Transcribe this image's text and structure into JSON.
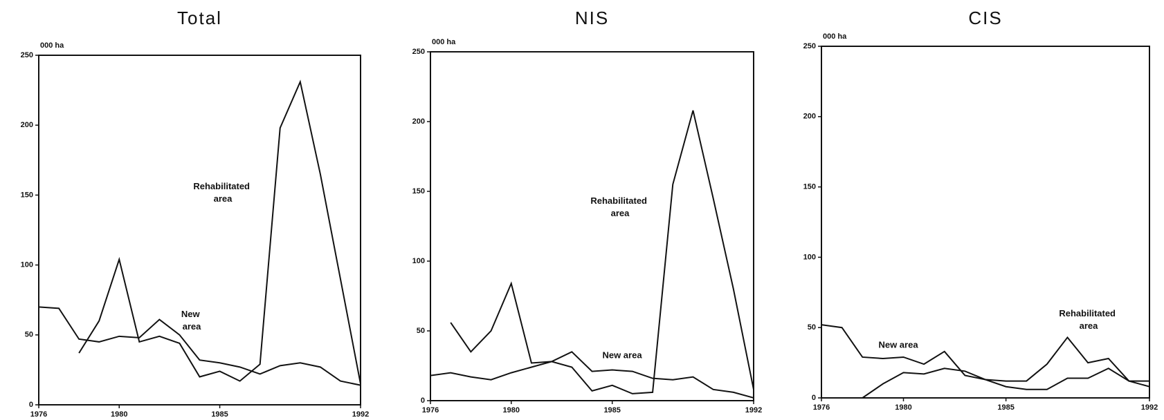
{
  "chart_data": [
    {
      "type": "line",
      "title": "Total",
      "ylabel": "000 ha",
      "x": [
        1976,
        1977,
        1978,
        1979,
        1980,
        1981,
        1982,
        1983,
        1984,
        1985,
        1986,
        1987,
        1988,
        1989,
        1990,
        1991,
        1992
      ],
      "xlim": [
        1976,
        1992
      ],
      "xticks": [
        1976,
        1980,
        1985,
        1992
      ],
      "ylim": [
        0,
        250
      ],
      "yticks": [
        0,
        50,
        100,
        150,
        200,
        250
      ],
      "series": [
        {
          "name": "New area",
          "color": "#111111",
          "values": [
            70,
            69,
            47,
            45,
            49,
            48,
            61,
            50,
            32,
            30,
            27,
            22,
            28,
            30,
            27,
            17,
            14
          ]
        },
        {
          "name": "Rehabilitated area",
          "color": "#111111",
          "values": [
            null,
            null,
            37,
            60,
            104,
            45,
            49,
            44,
            20,
            24,
            17,
            29,
            198,
            231,
            165,
            90,
            15
          ]
        }
      ]
    },
    {
      "type": "line",
      "title": "NIS",
      "ylabel": "000 ha",
      "x": [
        1976,
        1977,
        1978,
        1979,
        1980,
        1981,
        1982,
        1983,
        1984,
        1985,
        1986,
        1987,
        1988,
        1989,
        1990,
        1991,
        1992
      ],
      "xlim": [
        1976,
        1992
      ],
      "xticks": [
        1976,
        1980,
        1985,
        1992
      ],
      "ylim": [
        0,
        250
      ],
      "yticks": [
        0,
        50,
        100,
        150,
        200,
        250
      ],
      "series": [
        {
          "name": "New area",
          "color": "#111111",
          "values": [
            18,
            20,
            17,
            15,
            20,
            24,
            28,
            35,
            21,
            22,
            21,
            16,
            15,
            17,
            8,
            6,
            2
          ]
        },
        {
          "name": "Rehabilitated area",
          "color": "#111111",
          "values": [
            null,
            56,
            35,
            50,
            84,
            27,
            28,
            24,
            7,
            11,
            5,
            6,
            155,
            208,
            145,
            80,
            8
          ]
        }
      ]
    },
    {
      "type": "line",
      "title": "CIS",
      "ylabel": "000 ha",
      "x": [
        1976,
        1977,
        1978,
        1979,
        1980,
        1981,
        1982,
        1983,
        1984,
        1985,
        1986,
        1987,
        1988,
        1989,
        1990,
        1991,
        1992
      ],
      "xlim": [
        1976,
        1992
      ],
      "xticks": [
        1976,
        1980,
        1985,
        1992
      ],
      "ylim": [
        0,
        250
      ],
      "yticks": [
        0,
        50,
        100,
        150,
        200,
        250
      ],
      "series": [
        {
          "name": "New area",
          "color": "#111111",
          "values": [
            52,
            50,
            29,
            28,
            29,
            24,
            33,
            16,
            13,
            12,
            12,
            24,
            43,
            25,
            28,
            12,
            12
          ]
        },
        {
          "name": "Rehabilitated area",
          "color": "#111111",
          "values": [
            null,
            null,
            0,
            10,
            18,
            17,
            21,
            19,
            13,
            8,
            6,
            6,
            14,
            14,
            21,
            12,
            8
          ]
        }
      ]
    }
  ]
}
